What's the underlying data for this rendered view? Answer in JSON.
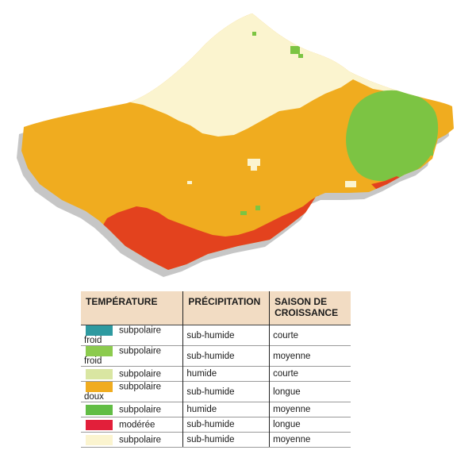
{
  "map": {
    "colors": {
      "orange": "#f0ac1f",
      "cream": "#fbf4cf",
      "green": "#7cc443",
      "red": "#e3421e",
      "shadow": "#b9b9b9"
    },
    "regions": [
      "subpolaire doux / sub-humide / longue",
      "subpolaire / sub-humide / moyenne",
      "subpolaire / humide / moyenne",
      "modérée / sub-humide / longue"
    ]
  },
  "legend": {
    "headers": {
      "temperature": "TEMPÉRATURE",
      "precipitation": "PRÉCIPITATION",
      "season": "SAISON DE CROISSANCE"
    },
    "rows": [
      {
        "color": "#2e9aa0",
        "temperature": "subpolaire froid",
        "precipitation": "sub-humide",
        "season": "courte"
      },
      {
        "color": "#8ccb4e",
        "temperature": "subpolaire froid",
        "precipitation": "sub-humide",
        "season": "moyenne"
      },
      {
        "color": "#d9e6a2",
        "temperature": "subpolaire",
        "precipitation": "humide",
        "season": "courte"
      },
      {
        "color": "#f0ac1f",
        "temperature": "subpolaire doux",
        "precipitation": "sub-humide",
        "season": "longue"
      },
      {
        "color": "#62bd45",
        "temperature": "subpolaire",
        "precipitation": "humide",
        "season": "moyenne"
      },
      {
        "color": "#e21f3a",
        "temperature": "modérée",
        "precipitation": "sub-humide",
        "season": "longue"
      },
      {
        "color": "#fbf4cf",
        "temperature": "subpolaire",
        "precipitation": "sub-humide",
        "season": "moyenne"
      }
    ]
  }
}
